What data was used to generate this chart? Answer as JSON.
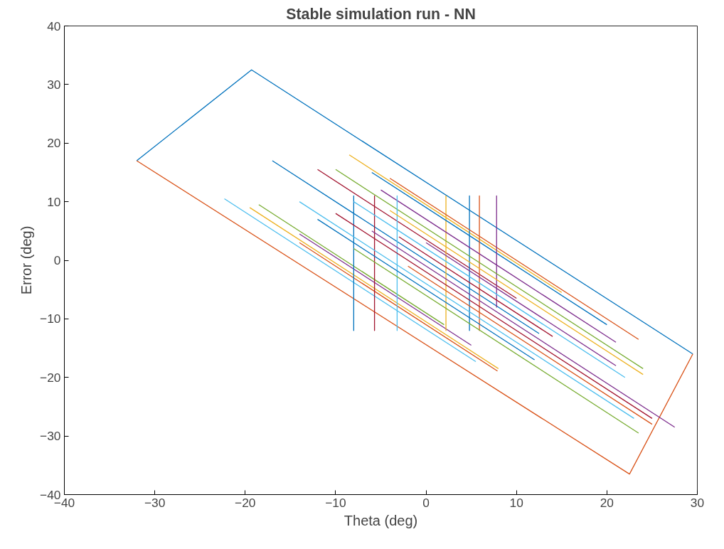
{
  "chart_data": {
    "type": "line",
    "title": "Stable simulation run - NN",
    "xlabel": "Theta (deg)",
    "ylabel": "Error (deg)",
    "xlim": [
      -40,
      30
    ],
    "ylim": [
      -40,
      40
    ],
    "xticks": [
      -40,
      -30,
      -20,
      -10,
      0,
      10,
      20,
      30
    ],
    "yticks": [
      -40,
      -30,
      -20,
      -10,
      0,
      10,
      20,
      30,
      40
    ],
    "grid": false,
    "line_style": "solid",
    "marker": "none",
    "series": [
      {
        "color": "#0072bd",
        "x": [
          -32,
          -19.3,
          29.5
        ],
        "values": [
          17,
          32.5,
          -16
        ]
      },
      {
        "color": "#d95319",
        "x": [
          -32,
          22.5,
          29.5
        ],
        "values": [
          17,
          -36.5,
          -16
        ]
      },
      {
        "color": "#4dbeee",
        "x": [
          -22.3,
          5.5
        ],
        "values": [
          10.5,
          -17.3
        ]
      },
      {
        "color": "#edb120",
        "x": [
          -19.5,
          8
        ],
        "values": [
          9,
          -18.5
        ]
      },
      {
        "color": "#d95319",
        "x": [
          -14,
          7.9
        ],
        "values": [
          3,
          -18.9
        ]
      },
      {
        "color": "#77ac30",
        "x": [
          -18.5,
          2
        ],
        "values": [
          9.5,
          -11
        ]
      },
      {
        "color": "#7e2f8e",
        "x": [
          -14,
          5
        ],
        "values": [
          4.5,
          -14.5
        ]
      },
      {
        "color": "#0072bd",
        "x": [
          -17,
          -8,
          -8,
          -8,
          -8,
          12.5
        ],
        "values": [
          17,
          8,
          -12,
          11,
          8,
          -12.5
        ]
      },
      {
        "color": "#a2142f",
        "x": [
          -12,
          -5.7,
          -5.7,
          -5.7,
          -5.7,
          10
        ],
        "values": [
          15.5,
          9.2,
          -12,
          11,
          9.2,
          -6.5
        ]
      },
      {
        "color": "#edb120",
        "x": [
          -8.5,
          2.2,
          2.2,
          2.2,
          2.2,
          15
        ],
        "values": [
          18,
          7.3,
          -12,
          11,
          7.3,
          -5.5
        ]
      },
      {
        "color": "#0072bd",
        "x": [
          -6,
          4.8,
          4.8,
          4.8,
          4.8,
          20
        ],
        "values": [
          15,
          4.2,
          -12,
          11,
          4.2,
          -11
        ]
      },
      {
        "color": "#d95319",
        "x": [
          -4,
          5.9,
          5.9,
          5.9,
          5.9,
          23.5
        ],
        "values": [
          14,
          4.1,
          -12,
          11,
          4.1,
          -13.5
        ]
      },
      {
        "color": "#7e2f8e",
        "x": [
          -5,
          7.8,
          7.8,
          7.8,
          7.8,
          21
        ],
        "values": [
          12,
          -0.8,
          -8,
          11,
          -0.8,
          -14
        ]
      },
      {
        "color": "#77ac30",
        "x": [
          -10,
          24
        ],
        "values": [
          15.5,
          -18.5
        ]
      },
      {
        "color": "#4dbeee",
        "x": [
          -8,
          -3.2,
          -3.2,
          -3.2,
          -3.2,
          22
        ],
        "values": [
          10,
          5.2,
          -12,
          11,
          5.2,
          -20
        ]
      },
      {
        "color": "#a2142f",
        "x": [
          -10,
          25
        ],
        "values": [
          8,
          -27
        ]
      },
      {
        "color": "#7e2f8e",
        "x": [
          -6,
          27.5
        ],
        "values": [
          5,
          -28.5
        ]
      },
      {
        "color": "#0072bd",
        "x": [
          -12,
          12
        ],
        "values": [
          7,
          -17
        ]
      },
      {
        "color": "#77ac30",
        "x": [
          -8,
          23.5
        ],
        "values": [
          2,
          -29.5
        ]
      },
      {
        "color": "#edb120",
        "x": [
          -4,
          24
        ],
        "values": [
          8.5,
          -19.5
        ]
      },
      {
        "color": "#d95319",
        "x": [
          -2,
          25
        ],
        "values": [
          -1,
          -28
        ]
      },
      {
        "color": "#4dbeee",
        "x": [
          -14,
          23
        ],
        "values": [
          10,
          -27
        ]
      },
      {
        "color": "#a2142f",
        "x": [
          -3,
          14
        ],
        "values": [
          4,
          -13
        ]
      },
      {
        "color": "#7e2f8e",
        "x": [
          0,
          21
        ],
        "values": [
          3,
          -18
        ]
      }
    ]
  }
}
